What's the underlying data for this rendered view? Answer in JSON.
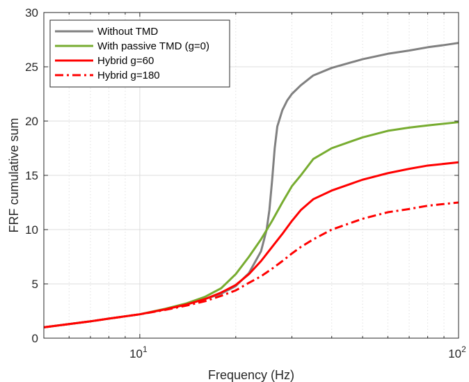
{
  "chart_data": {
    "type": "line",
    "title": "",
    "xlabel": "Frequency (Hz)",
    "ylabel": "FRF cumulative sum",
    "xscale": "log",
    "xlim": [
      5,
      100
    ],
    "ylim": [
      0,
      30
    ],
    "y_ticks": [
      0,
      5,
      10,
      15,
      20,
      25,
      30
    ],
    "x_ticks": [
      {
        "value": 10,
        "base": "10",
        "exp": "1"
      },
      {
        "value": 100,
        "base": "10",
        "exp": "2"
      }
    ],
    "grid": true,
    "legend_position": "top-left",
    "series": [
      {
        "name": "Without TMD",
        "color": "#808080",
        "style": "solid",
        "x": [
          5,
          6,
          7,
          8,
          10,
          12,
          14,
          16,
          18,
          20,
          22,
          24,
          25,
          25.5,
          26,
          26.5,
          27,
          28,
          29,
          30,
          32,
          35,
          40,
          50,
          60,
          70,
          80,
          90,
          100
        ],
        "y": [
          1.0,
          1.3,
          1.55,
          1.8,
          2.2,
          2.65,
          3.1,
          3.6,
          4.1,
          4.8,
          6.0,
          8.0,
          10.0,
          11.8,
          14.5,
          17.5,
          19.5,
          21.0,
          21.9,
          22.5,
          23.3,
          24.2,
          24.9,
          25.7,
          26.2,
          26.5,
          26.8,
          27.0,
          27.2
        ]
      },
      {
        "name": "With passive TMD (g=0)",
        "color": "#77ac30",
        "style": "solid",
        "x": [
          5,
          6,
          7,
          8,
          10,
          12,
          14,
          16,
          18,
          20,
          22,
          24,
          26,
          28,
          30,
          32,
          35,
          40,
          50,
          60,
          70,
          80,
          100
        ],
        "y": [
          1.0,
          1.3,
          1.55,
          1.8,
          2.2,
          2.7,
          3.2,
          3.8,
          4.6,
          5.9,
          7.5,
          9.1,
          10.8,
          12.5,
          14.0,
          15.0,
          16.5,
          17.5,
          18.5,
          19.1,
          19.4,
          19.6,
          19.9
        ]
      },
      {
        "name": "Hybrid g=60",
        "color": "#ff0000",
        "style": "solid",
        "x": [
          5,
          6,
          7,
          8,
          10,
          12,
          14,
          16,
          18,
          20,
          22,
          24,
          26,
          28,
          30,
          32,
          35,
          40,
          50,
          60,
          70,
          80,
          100
        ],
        "y": [
          1.0,
          1.3,
          1.55,
          1.8,
          2.2,
          2.65,
          3.1,
          3.6,
          4.2,
          4.9,
          5.9,
          7.1,
          8.4,
          9.6,
          10.8,
          11.8,
          12.8,
          13.6,
          14.6,
          15.2,
          15.6,
          15.9,
          16.2
        ]
      },
      {
        "name": "Hybrid g=180",
        "color": "#ff0000",
        "style": "dashdot",
        "x": [
          5,
          6,
          7,
          8,
          10,
          12,
          14,
          16,
          18,
          20,
          22,
          24,
          26,
          28,
          30,
          32,
          35,
          40,
          50,
          60,
          70,
          80,
          100
        ],
        "y": [
          1.0,
          1.3,
          1.55,
          1.8,
          2.2,
          2.6,
          3.0,
          3.4,
          3.9,
          4.4,
          5.1,
          5.7,
          6.4,
          7.1,
          7.8,
          8.4,
          9.1,
          10.0,
          11.0,
          11.6,
          11.9,
          12.2,
          12.5
        ]
      }
    ]
  }
}
